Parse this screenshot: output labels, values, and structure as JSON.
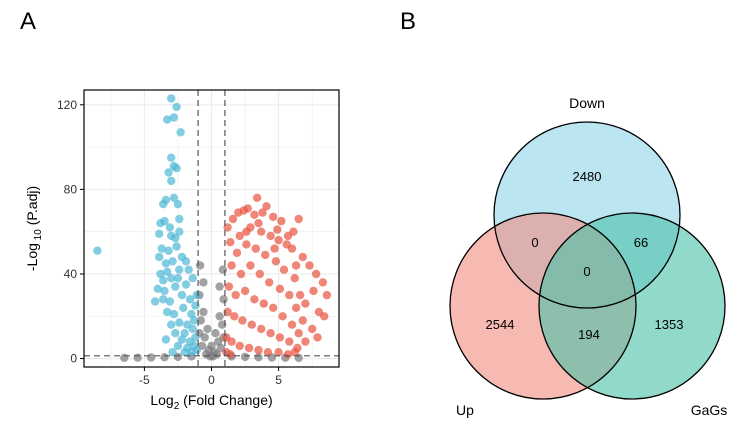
{
  "panels": {
    "a_label": "A",
    "b_label": "B"
  },
  "chart_data": [
    {
      "type": "scatter",
      "title": "",
      "xlabel_main": "Log",
      "xlabel_sub": "2",
      "xlabel_tail": " (Fold Change)",
      "ylabel_main": "-Log",
      "ylabel_sub": " 10",
      "ylabel_tail": " (P.adj)",
      "xlim": [
        -9.5,
        9.5
      ],
      "ylim": [
        -4,
        127
      ],
      "xticks": [
        -5,
        0,
        5
      ],
      "yticks": [
        0,
        40,
        80,
        120
      ],
      "grid": true,
      "thresholds": {
        "x": [
          -1,
          1
        ],
        "y": 1.3
      },
      "colors": {
        "down": "#4db8d6",
        "up": "#e8533f",
        "ns": "#7a7a7a"
      },
      "series": [
        {
          "group": "down",
          "points": [
            [
              -3.0,
              123
            ],
            [
              -2.6,
              119
            ],
            [
              -3.3,
              113
            ],
            [
              -2.8,
              114
            ],
            [
              -2.3,
              107
            ],
            [
              -3.0,
              95
            ],
            [
              -2.8,
              91
            ],
            [
              -3.2,
              88
            ],
            [
              -3.0,
              84
            ],
            [
              -2.6,
              90
            ],
            [
              -3.4,
              75
            ],
            [
              -2.8,
              76
            ],
            [
              -3.6,
              73
            ],
            [
              -3.5,
              65
            ],
            [
              -3.1,
              62
            ],
            [
              -2.5,
              73
            ],
            [
              -2.4,
              66
            ],
            [
              -3.8,
              64
            ],
            [
              -3.9,
              59
            ],
            [
              -3.0,
              58
            ],
            [
              -2.7,
              57
            ],
            [
              -3.7,
              52
            ],
            [
              -3.2,
              51
            ],
            [
              -2.6,
              53
            ],
            [
              -3.9,
              48
            ],
            [
              -3.4,
              45
            ],
            [
              -2.9,
              46
            ],
            [
              -3.8,
              40
            ],
            [
              -3.3,
              41
            ],
            [
              -2.4,
              42
            ],
            [
              -3.6,
              37
            ],
            [
              -3.0,
              38
            ],
            [
              -4.0,
              33
            ],
            [
              -3.5,
              32
            ],
            [
              -2.7,
              34
            ],
            [
              -4.2,
              27
            ],
            [
              -3.6,
              28
            ],
            [
              -3.1,
              27
            ],
            [
              -2.2,
              30
            ],
            [
              -1.9,
              35
            ],
            [
              -1.6,
              28
            ],
            [
              -2.1,
              24
            ],
            [
              -1.5,
              21
            ],
            [
              -2.8,
              21
            ],
            [
              -3.3,
              22
            ],
            [
              -1.3,
              18
            ],
            [
              -1.8,
              16
            ],
            [
              -2.4,
              17
            ],
            [
              -3.0,
              16
            ],
            [
              -1.4,
              14
            ],
            [
              -2.0,
              12
            ],
            [
              -2.7,
              12
            ],
            [
              -1.2,
              10
            ],
            [
              -1.6,
              8
            ],
            [
              -2.2,
              9
            ],
            [
              -3.4,
              9
            ],
            [
              -1.3,
              6
            ],
            [
              -1.8,
              5
            ],
            [
              -2.5,
              6
            ],
            [
              -1.1,
              4
            ],
            [
              -1.5,
              3
            ],
            [
              -2.0,
              3
            ],
            [
              -2.9,
              3
            ],
            [
              -8.5,
              51
            ],
            [
              -2.4,
              60
            ],
            [
              -2.2,
              48
            ],
            [
              -1.7,
              42
            ],
            [
              -1.4,
              38
            ],
            [
              -1.9,
              46
            ],
            [
              -2.5,
              38
            ],
            [
              -1.2,
              25
            ],
            [
              -1.1,
              30
            ]
          ]
        },
        {
          "group": "up",
          "points": [
            [
              1.2,
              62
            ],
            [
              1.6,
              66
            ],
            [
              2.0,
              69
            ],
            [
              2.4,
              70
            ],
            [
              2.7,
              71
            ],
            [
              3.2,
              68
            ],
            [
              3.8,
              69
            ],
            [
              4.6,
              67
            ],
            [
              5.2,
              65
            ],
            [
              6.5,
              66
            ],
            [
              3.4,
              76
            ],
            [
              4.1,
              72
            ],
            [
              2.9,
              62
            ],
            [
              3.7,
              60
            ],
            [
              4.4,
              58
            ],
            [
              5.0,
              56
            ],
            [
              5.6,
              54
            ],
            [
              6.0,
              52
            ],
            [
              6.8,
              48
            ],
            [
              7.3,
              44
            ],
            [
              7.8,
              40
            ],
            [
              8.3,
              36
            ],
            [
              8.6,
              30
            ],
            [
              8.0,
              22
            ],
            [
              7.5,
              14
            ],
            [
              7.0,
              8
            ],
            [
              1.4,
              55
            ],
            [
              1.9,
              50
            ],
            [
              2.6,
              54
            ],
            [
              3.3,
              52
            ],
            [
              4.0,
              49
            ],
            [
              4.8,
              46
            ],
            [
              5.4,
              42
            ],
            [
              6.2,
              38
            ],
            [
              6.6,
              30
            ],
            [
              7.0,
              26
            ],
            [
              7.6,
              32
            ],
            [
              1.5,
              44
            ],
            [
              2.2,
              40
            ],
            [
              2.9,
              44
            ],
            [
              3.6,
              40
            ],
            [
              4.3,
              36
            ],
            [
              5.1,
              33
            ],
            [
              5.8,
              30
            ],
            [
              6.3,
              24
            ],
            [
              6.8,
              18
            ],
            [
              1.3,
              34
            ],
            [
              1.8,
              30
            ],
            [
              2.5,
              32
            ],
            [
              3.2,
              28
            ],
            [
              3.9,
              26
            ],
            [
              4.6,
              24
            ],
            [
              5.3,
              20
            ],
            [
              6.0,
              16
            ],
            [
              6.5,
              12
            ],
            [
              1.2,
              22
            ],
            [
              1.7,
              20
            ],
            [
              2.3,
              18
            ],
            [
              3.0,
              16
            ],
            [
              3.7,
              14
            ],
            [
              4.4,
              12
            ],
            [
              5.1,
              10
            ],
            [
              5.8,
              8
            ],
            [
              6.4,
              5
            ],
            [
              1.1,
              10
            ],
            [
              1.5,
              8
            ],
            [
              2.1,
              6
            ],
            [
              2.8,
              5
            ],
            [
              3.5,
              4
            ],
            [
              4.2,
              3
            ],
            [
              5.0,
              3
            ],
            [
              5.7,
              2
            ],
            [
              6.2,
              3
            ],
            [
              1.1,
              3
            ],
            [
              1.4,
              2
            ],
            [
              2.6,
              60
            ],
            [
              3.5,
              64
            ],
            [
              4.9,
              61
            ],
            [
              5.7,
              58
            ],
            [
              6.3,
              44
            ],
            [
              7.9,
              10
            ],
            [
              8.4,
              20
            ],
            [
              2.1,
              58
            ],
            [
              4.7,
              52
            ],
            [
              6.1,
              60
            ]
          ]
        },
        {
          "group": "ns",
          "points": [
            [
              -0.9,
              30
            ],
            [
              -0.6,
              22
            ],
            [
              -0.3,
              14
            ],
            [
              0.0,
              6
            ],
            [
              0.3,
              12
            ],
            [
              0.6,
              20
            ],
            [
              0.9,
              28
            ],
            [
              -0.8,
              18
            ],
            [
              -0.5,
              10
            ],
            [
              -0.2,
              4
            ],
            [
              0.2,
              3
            ],
            [
              0.5,
              8
            ],
            [
              0.8,
              16
            ],
            [
              -0.7,
              6
            ],
            [
              0.7,
              5
            ],
            [
              -0.4,
              2
            ],
            [
              0.4,
              2
            ],
            [
              -0.9,
              12
            ],
            [
              0.9,
              10
            ],
            [
              -0.1,
              1
            ],
            [
              0.1,
              1
            ],
            [
              -1.5,
              1
            ],
            [
              -2.5,
              0.8
            ],
            [
              -3.5,
              0.6
            ],
            [
              -4.5,
              0.5
            ],
            [
              -5.5,
              0.4
            ],
            [
              1.5,
              1
            ],
            [
              2.5,
              0.8
            ],
            [
              3.5,
              0.6
            ],
            [
              4.5,
              0.5
            ],
            [
              5.5,
              0.4
            ],
            [
              6.5,
              0.3
            ],
            [
              -6.5,
              0.3
            ],
            [
              -0.6,
              36
            ],
            [
              0.6,
              34
            ],
            [
              -0.85,
              44
            ],
            [
              0.85,
              42
            ]
          ]
        }
      ]
    },
    {
      "type": "venn",
      "sets": [
        {
          "name": "Down",
          "color": "#91d5e8"
        },
        {
          "name": "Up",
          "color": "#f08f85"
        },
        {
          "name": "GaGs",
          "color": "#4ec2a9"
        }
      ],
      "regions": {
        "down_only": "2480",
        "up_only": "2544",
        "gags_only": "1353",
        "down_up": "0",
        "down_gags": "66",
        "up_gags": "194",
        "all_three": "0"
      }
    }
  ]
}
